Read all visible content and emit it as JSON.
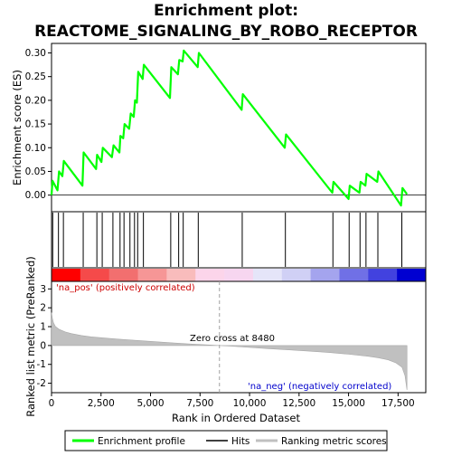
{
  "chart_data": {
    "type": "line",
    "title_line1": "Enrichment plot:",
    "title_line2": "REACTOME_SIGNALING_BY_ROBO_RECEPTOR",
    "top_panel": {
      "ylabel": "Enrichment score (ES)",
      "ylim": [
        -0.035,
        0.32
      ],
      "yticks": [
        0.0,
        0.05,
        0.1,
        0.15,
        0.2,
        0.25,
        0.3
      ],
      "ytick_labels": [
        "0.00",
        "0.05",
        "0.10",
        "0.15",
        "0.20",
        "0.25",
        "0.30"
      ],
      "series": [
        {
          "name": "Enrichment profile",
          "color": "#00ff00",
          "x": [
            0,
            50,
            180,
            300,
            380,
            550,
            620,
            1560,
            1620,
            2250,
            2300,
            2520,
            2590,
            3050,
            3130,
            3430,
            3480,
            3620,
            3690,
            3920,
            4000,
            4150,
            4220,
            4310,
            4380,
            4600,
            4660,
            5980,
            6050,
            6380,
            6450,
            6620,
            6680,
            7380,
            7440,
            9600,
            9660,
            11780,
            11840,
            14180,
            14240,
            15000,
            15060,
            15550,
            15610,
            15850,
            15910,
            16450,
            16510,
            17650,
            17720,
            17950
          ],
          "y": [
            0.0,
            0.03,
            0.02,
            0.01,
            0.05,
            0.04,
            0.072,
            0.02,
            0.09,
            0.055,
            0.085,
            0.07,
            0.1,
            0.08,
            0.105,
            0.09,
            0.125,
            0.12,
            0.15,
            0.14,
            0.172,
            0.165,
            0.2,
            0.195,
            0.26,
            0.245,
            0.275,
            0.205,
            0.27,
            0.255,
            0.285,
            0.282,
            0.305,
            0.27,
            0.3,
            0.18,
            0.213,
            0.1,
            0.128,
            0.005,
            0.028,
            -0.008,
            0.02,
            0.005,
            0.028,
            0.02,
            0.045,
            0.028,
            0.05,
            -0.022,
            0.015,
            0.002
          ]
        }
      ],
      "zero_line": true
    },
    "hits_panel": {
      "hit_positions": [
        60,
        350,
        600,
        1600,
        2290,
        2560,
        3100,
        3460,
        3660,
        3960,
        4190,
        4350,
        4640,
        6020,
        6420,
        6650,
        7410,
        9630,
        11810,
        14210,
        15030,
        15580,
        15880,
        16480,
        17690
      ]
    },
    "rank_colorbar": {
      "colors": [
        "#ff0000",
        "#f54a4a",
        "#f26f6f",
        "#f69696",
        "#f9bcbc",
        "#fcd5ea",
        "#f7d6f0",
        "#e5e5f9",
        "#d0d0f5",
        "#a4a4ee",
        "#7070e6",
        "#4242df",
        "#0000d1"
      ]
    },
    "bottom_panel": {
      "ylabel": "Ranked list metric (PreRanked)",
      "xlabel": "Rank in Ordered Dataset",
      "xlim": [
        0,
        18900
      ],
      "ylim": [
        -2.5,
        3.4
      ],
      "yticks": [
        -2,
        -1,
        0,
        1,
        2,
        3
      ],
      "ytick_labels": [
        "-2",
        "-1",
        "0",
        "1",
        "2",
        "3"
      ],
      "xticks": [
        0,
        2500,
        5000,
        7500,
        10000,
        12500,
        15000,
        17500
      ],
      "xtick_labels": [
        "0",
        "2,500",
        "5,000",
        "7,500",
        "10,000",
        "12,500",
        "15,000",
        "17,500"
      ],
      "metric_curve": {
        "x": [
          0,
          40,
          100,
          200,
          400,
          700,
          1000,
          1500,
          2000,
          3000,
          4000,
          5000,
          6000,
          7000,
          8000,
          8480,
          9000,
          10000,
          11000,
          12000,
          13000,
          14000,
          15000,
          16000,
          16500,
          17000,
          17400,
          17700,
          17850,
          17950
        ],
        "y": [
          1.75,
          1.45,
          1.2,
          1.0,
          0.85,
          0.72,
          0.63,
          0.53,
          0.46,
          0.37,
          0.29,
          0.22,
          0.15,
          0.08,
          0.03,
          0.0,
          -0.03,
          -0.1,
          -0.17,
          -0.23,
          -0.3,
          -0.37,
          -0.46,
          -0.57,
          -0.65,
          -0.76,
          -0.92,
          -1.15,
          -1.6,
          -2.35
        ]
      },
      "zero_cross_label": "Zero cross at 8480",
      "zero_cross_rank": 8480,
      "pos_label": "'na_pos' (positively correlated)",
      "neg_label": "'na_neg' (negatively correlated)"
    },
    "legend": [
      {
        "label": "Enrichment profile",
        "color": "#00ff00"
      },
      {
        "label": "Hits",
        "color": "#000000"
      },
      {
        "label": "Ranking metric scores",
        "color": "#c0c0c0"
      }
    ]
  }
}
